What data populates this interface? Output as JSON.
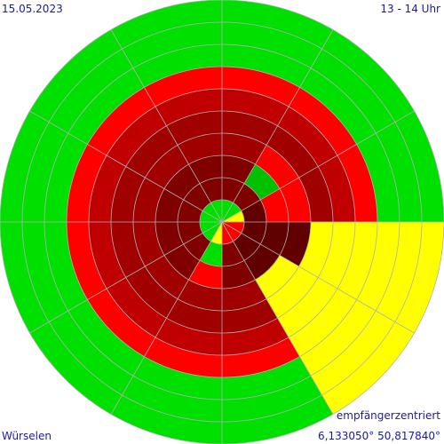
{
  "chart_data": {
    "type": "polar-grid",
    "date": "15.05.2023",
    "time": "13 - 14 Uhr",
    "location": "Würselen",
    "mode": "empfängerzentriert",
    "coordinates": "6,133050° 50,817840°",
    "sectors": [
      [
        "#00e000",
        "#800000",
        "#800000",
        "#a00000",
        "#a00000",
        "#c00000",
        "#ff0000",
        "#00e000",
        "#00e000",
        "#00e000"
      ],
      [
        "#00e000",
        "#800000",
        "#00c000",
        "#ff0000",
        "#a00000",
        "#c00000",
        "#ff0000",
        "#00e000",
        "#00e000",
        "#00e000"
      ],
      [
        "#ffff00",
        "#600000",
        "#ff0000",
        "#ff0000",
        "#a00000",
        "#c00000",
        "#ff0000",
        "#00e000",
        "#00e000",
        "#00e000"
      ],
      [
        "#ff0000",
        "#600000",
        "#600000",
        "#600000",
        "#ffff00",
        "#ffff00",
        "#ffff00",
        "#ffff00",
        "#ffff00",
        "#ffff00"
      ],
      [
        "#ff0000",
        "#600000",
        "#600000",
        "#ffff00",
        "#ffff00",
        "#ffff00",
        "#ffff00",
        "#ffff00",
        "#ffff00",
        "#ffff00"
      ],
      [
        "#ff0000",
        "#800000",
        "#800000",
        "#a00000",
        "#a00000",
        "#c00000",
        "#ff0000",
        "#00e000",
        "#00e000",
        "#00e000"
      ],
      [
        "#ffff00",
        "#00e000",
        "#ff0000",
        "#a00000",
        "#a00000",
        "#c00000",
        "#ff0000",
        "#00e000",
        "#00e000",
        "#00e000"
      ],
      [
        "#00e000",
        "#800000",
        "#800000",
        "#a00000",
        "#a00000",
        "#c00000",
        "#ff0000",
        "#00e000",
        "#00e000",
        "#00e000"
      ],
      [
        "#00e000",
        "#800000",
        "#800000",
        "#a00000",
        "#a00000",
        "#c00000",
        "#ff0000",
        "#00e000",
        "#00e000",
        "#00e000"
      ],
      [
        "#00e000",
        "#800000",
        "#800000",
        "#a00000",
        "#a00000",
        "#c00000",
        "#ff0000",
        "#00e000",
        "#00e000",
        "#00e000"
      ],
      [
        "#00e000",
        "#800000",
        "#800000",
        "#a00000",
        "#a00000",
        "#c00000",
        "#ff0000",
        "#00e000",
        "#00e000",
        "#00e000"
      ],
      [
        "#00e000",
        "#800000",
        "#800000",
        "#a00000",
        "#a00000",
        "#c00000",
        "#ff0000",
        "#00e000",
        "#00e000",
        "#00e000"
      ]
    ]
  }
}
